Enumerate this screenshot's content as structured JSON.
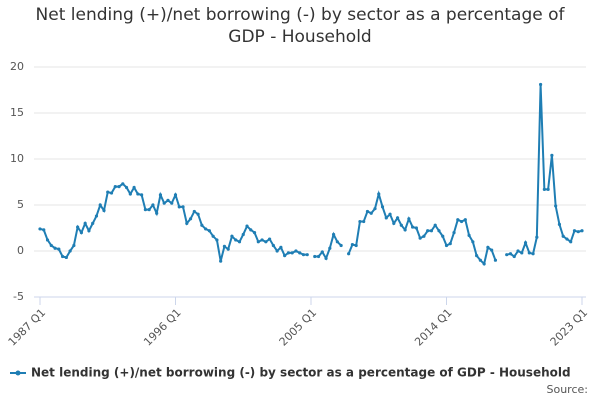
{
  "chart_data": {
    "type": "line",
    "title": "Net lending (+)/net borrowing (-) by sector as a percentage of GDP - Household",
    "source": "Source:",
    "categories": [
      "1987 Q1",
      null,
      null,
      null,
      null,
      null,
      null,
      null,
      null,
      null,
      null,
      null,
      null,
      null,
      null,
      null,
      null,
      null,
      null,
      null,
      null,
      null,
      null,
      null,
      null,
      null,
      null,
      null,
      null,
      null,
      null,
      null,
      null,
      null,
      null,
      null,
      "1996 Q1",
      null,
      null,
      null,
      null,
      null,
      null,
      null,
      null,
      null,
      null,
      null,
      null,
      null,
      null,
      null,
      null,
      null,
      null,
      null,
      null,
      null,
      null,
      null,
      null,
      null,
      null,
      null,
      null,
      null,
      null,
      null,
      null,
      null,
      null,
      null,
      "2005 Q1",
      null,
      null,
      null,
      null,
      null,
      null,
      null,
      null,
      null,
      null,
      null,
      null,
      null,
      null,
      null,
      null,
      null,
      null,
      null,
      null,
      null,
      null,
      null,
      null,
      null,
      null,
      null,
      null,
      null,
      null,
      null,
      null,
      null,
      null,
      null,
      "2014 Q1",
      null,
      null,
      null,
      null,
      null,
      null,
      null,
      null,
      null,
      null,
      null,
      null,
      null,
      null,
      null,
      null,
      null,
      null,
      null,
      null,
      null,
      null,
      null,
      null,
      null,
      null,
      null,
      null,
      null,
      null,
      null,
      null,
      null,
      null,
      null,
      "2023 Q1"
    ],
    "series": [
      {
        "name": "Net lending (+)/net borrowing (-) by sector as a percentage of GDP - Household",
        "color": "#1f7eb4",
        "values": [
          2.4,
          2.3,
          1.2,
          0.6,
          0.3,
          0.2,
          -0.6,
          -0.7,
          0,
          0.6,
          2.6,
          2.0,
          3.0,
          2.2,
          3.0,
          3.8,
          5.0,
          4.4,
          6.4,
          6.3,
          7.0,
          7.0,
          7.3,
          6.9,
          6.2,
          6.9,
          6.2,
          6.1,
          4.5,
          4.5,
          5.0,
          4.1,
          6.1,
          5.2,
          5.5,
          5.2,
          6.1,
          4.8,
          4.8,
          3.0,
          3.5,
          4.3,
          4.0,
          2.8,
          2.4,
          2.2,
          1.6,
          1.2,
          -1.1,
          0.5,
          0.2,
          1.6,
          1.2,
          1.0,
          1.8,
          2.7,
          2.3,
          2.0,
          1.0,
          1.2,
          1.0,
          1.3,
          0.6,
          0.0,
          0.4,
          -0.5,
          -0.2,
          -0.2,
          0.0,
          -0.2,
          -0.4,
          -0.4,
          null,
          -0.6,
          -0.6,
          -0.1,
          -0.8,
          0.3,
          1.8,
          1.0,
          0.6,
          null,
          -0.3,
          0.7,
          0.6,
          3.2,
          3.2,
          4.3,
          4.1,
          4.6,
          6.2,
          4.8,
          3.6,
          4.0,
          3.0,
          3.6,
          2.8,
          2.3,
          3.5,
          2.6,
          2.5,
          1.4,
          1.6,
          2.2,
          2.2,
          2.8,
          2.2,
          1.6,
          0.6,
          0.8,
          2.0,
          3.4,
          3.2,
          3.4,
          1.7,
          1.0,
          -0.5,
          -1.0,
          -1.4,
          0.4,
          0.1,
          -1.0,
          null,
          null,
          -0.4,
          -0.3,
          -0.6,
          0.0,
          -0.2,
          0.9,
          -0.2,
          -0.3,
          1.5,
          18.1,
          6.7,
          6.7,
          10.4,
          4.9,
          2.9,
          1.6,
          1.3,
          1.0,
          2.2,
          2.1,
          2.2
        ]
      }
    ],
    "ylim": [
      -5,
      20
    ],
    "yticks": [
      -5,
      0,
      5,
      10,
      15,
      20
    ],
    "grid": true,
    "legend": "bottom"
  }
}
